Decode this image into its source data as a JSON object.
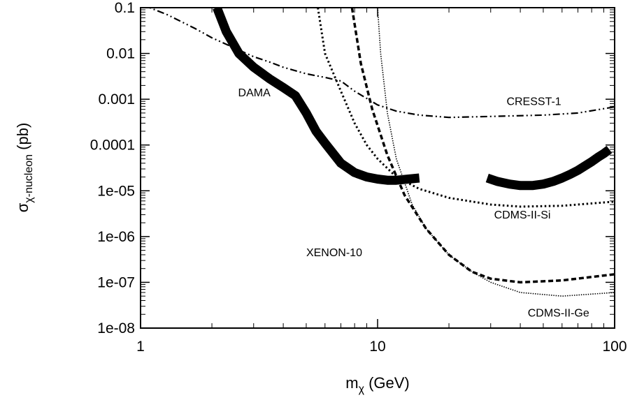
{
  "chart_data": {
    "type": "line",
    "title": "",
    "xlabel": {
      "main": "m",
      "sub": "χ",
      "rest": " (GeV)"
    },
    "ylabel": {
      "main": "σ",
      "sub": "χ-nucleon",
      "rest": " (pb)"
    },
    "x_scale": "log",
    "y_scale": "log",
    "xlim": [
      1,
      100
    ],
    "ylim": [
      1e-08,
      0.1
    ],
    "x_ticks": [
      {
        "value": 1,
        "label": "1"
      },
      {
        "value": 10,
        "label": "10"
      },
      {
        "value": 100,
        "label": "100"
      }
    ],
    "y_ticks": [
      {
        "value": 0.1,
        "label": "0.1"
      },
      {
        "value": 0.01,
        "label": "0.01"
      },
      {
        "value": 0.001,
        "label": "0.001"
      },
      {
        "value": 0.0001,
        "label": "0.0001"
      },
      {
        "value": 1e-05,
        "label": "1e-05"
      },
      {
        "value": 1e-06,
        "label": "1e-06"
      },
      {
        "value": 1e-07,
        "label": "1e-07"
      },
      {
        "value": 1e-08,
        "label": "1e-08"
      }
    ],
    "grid": false,
    "legend": "none",
    "series": [
      {
        "name": "CRESST-1",
        "style": "dashdot",
        "x": [
          1.0,
          1.3,
          1.7,
          2.0,
          2.5,
          3.0,
          3.5,
          4.0,
          5.0,
          6.0,
          7.0,
          8.0,
          10.0,
          12.0,
          15.0,
          20.0,
          30.0,
          50.0,
          70.0,
          100.0
        ],
        "y": [
          0.12,
          0.07,
          0.035,
          0.022,
          0.013,
          0.0085,
          0.0065,
          0.005,
          0.0036,
          0.003,
          0.0025,
          0.0015,
          0.00075,
          0.00055,
          0.00045,
          0.0004,
          0.00042,
          0.00045,
          0.0005,
          0.00068
        ]
      },
      {
        "name": "CDMS-II-Si",
        "style": "dotted",
        "x": [
          5.6,
          6.0,
          7.0,
          8.0,
          9.0,
          10.0,
          12.0,
          15.0,
          20.0,
          30.0,
          40.0,
          60.0,
          100.0
        ],
        "y": [
          0.1,
          0.01,
          0.0015,
          0.0003,
          0.0001,
          5e-05,
          2e-05,
          1.1e-05,
          7e-06,
          5e-06,
          4.5e-06,
          4.7e-06,
          5.8e-06
        ]
      },
      {
        "name": "CDMS-II-Ge",
        "style": "dashed",
        "x": [
          7.8,
          8.5,
          9.5,
          11.0,
          13.0,
          16.0,
          20.0,
          25.0,
          30.0,
          40.0,
          60.0,
          100.0
        ],
        "y": [
          0.1,
          0.006,
          0.0006,
          6e-05,
          8e-06,
          1.5e-06,
          4e-07,
          1.7e-07,
          1.2e-07,
          1e-07,
          1.1e-07,
          1.5e-07
        ]
      },
      {
        "name": "XENON-10",
        "style": "finedotted",
        "x": [
          10.0,
          10.3,
          11.0,
          12.0,
          14.0,
          16.0,
          20.0,
          25.0,
          30.0,
          40.0,
          60.0,
          100.0
        ],
        "y": [
          0.1,
          0.01,
          0.0005,
          5e-05,
          5e-06,
          1.5e-06,
          4e-07,
          1.7e-07,
          1e-07,
          6e-08,
          5e-08,
          6e-08
        ]
      }
    ],
    "regions": [
      {
        "name": "DAMA",
        "segments": [
          {
            "x": [
              2.1,
              2.3,
              2.6,
              3.0,
              3.5,
              4.0,
              4.5,
              5.0,
              5.5,
              6.0,
              7.0,
              8.0,
              9.0,
              10.0,
              11.0,
              12.0,
              13.5,
              15.0
            ],
            "y": [
              0.1,
              0.03,
              0.01,
              0.005,
              0.0028,
              0.0018,
              0.0012,
              0.0005,
              0.0002,
              0.00011,
              4e-05,
              2.5e-05,
              2e-05,
              1.8e-05,
              1.7e-05,
              1.7e-05,
              1.8e-05,
              1.9e-05
            ]
          },
          {
            "x": [
              29.0,
              32.0,
              36.0,
              40.0,
              45.0,
              50.0,
              55.0,
              60.0,
              65.0,
              70.0,
              75.0,
              80.0,
              85.0,
              90.0,
              95.0
            ],
            "y": [
              1.9e-05,
              1.6e-05,
              1.4e-05,
              1.3e-05,
              1.3e-05,
              1.4e-05,
              1.6e-05,
              1.9e-05,
              2.3e-05,
              2.8e-05,
              3.5e-05,
              4.3e-05,
              5.4e-05,
              6.5e-05,
              8e-05
            ]
          }
        ]
      }
    ],
    "annotations": [
      {
        "text": "DAMA",
        "x": 2.58,
        "y": 0.00115
      },
      {
        "text": "CRESST-1",
        "x": 35.0,
        "y": 0.00075
      },
      {
        "text": "CDMS-II-Si",
        "x": 31.0,
        "y": 2.5e-06
      },
      {
        "text": "XENON-10",
        "x": 5.0,
        "y": 3.7e-07
      },
      {
        "text": "CDMS-II-Ge",
        "x": 43.0,
        "y": 1.8e-08
      }
    ]
  }
}
